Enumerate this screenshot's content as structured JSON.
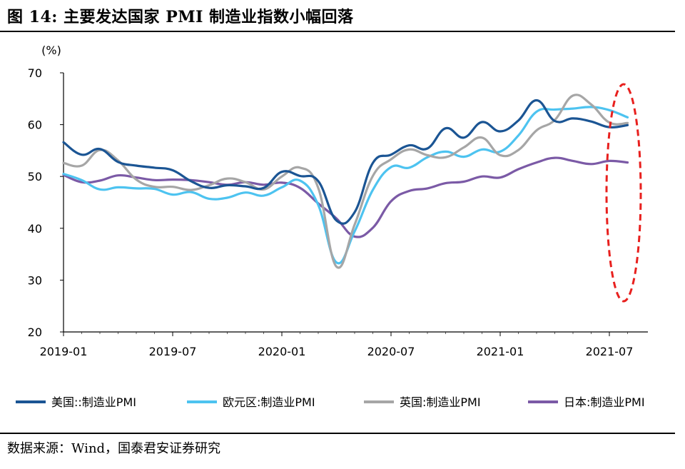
{
  "header": {
    "title": "图 14:  主要发达国家 PMI 制造业指数小幅回落"
  },
  "footer": {
    "source": "数据来源：Wind，国泰君安证券研究"
  },
  "chart_data": {
    "type": "line",
    "title": "图 14:  主要发达国家 PMI 制造业指数小幅回落",
    "ylabel": "(%)",
    "ylim": [
      20,
      70
    ],
    "yticks": [
      "20",
      "30",
      "40",
      "50",
      "60",
      "70"
    ],
    "xticks": [
      "2019-01",
      "2019-07",
      "2020-01",
      "2020-07",
      "2021-01",
      "2021-07"
    ],
    "x": [
      "2019-01",
      "2019-02",
      "2019-03",
      "2019-04",
      "2019-05",
      "2019-06",
      "2019-07",
      "2019-08",
      "2019-09",
      "2019-10",
      "2019-11",
      "2019-12",
      "2020-01",
      "2020-02",
      "2020-03",
      "2020-04",
      "2020-05",
      "2020-06",
      "2020-07",
      "2020-08",
      "2020-09",
      "2020-10",
      "2020-11",
      "2020-12",
      "2021-01",
      "2021-02",
      "2021-03",
      "2021-04",
      "2021-05",
      "2021-06",
      "2021-07",
      "2021-08"
    ],
    "grid": false,
    "legend_position": "bottom",
    "series": [
      {
        "name": "美国::制造业PMI",
        "color": "#1B5594",
        "values": [
          56.6,
          54.2,
          55.3,
          52.8,
          52.1,
          51.7,
          51.2,
          49.1,
          47.8,
          48.3,
          48.1,
          47.8,
          50.9,
          50.1,
          49.1,
          41.5,
          43.1,
          52.6,
          54.2,
          56.0,
          55.4,
          59.3,
          57.5,
          60.5,
          58.7,
          60.8,
          64.7,
          60.7,
          61.2,
          60.6,
          59.5,
          59.9
        ]
      },
      {
        "name": "欧元区:制造业PMI",
        "color": "#4DC3F0",
        "values": [
          50.5,
          49.3,
          47.5,
          47.9,
          47.7,
          47.6,
          46.5,
          47.0,
          45.7,
          45.9,
          46.9,
          46.3,
          47.9,
          49.2,
          44.5,
          33.4,
          39.4,
          47.4,
          51.8,
          51.7,
          53.7,
          54.8,
          53.8,
          55.2,
          54.8,
          57.9,
          62.5,
          62.9,
          63.1,
          63.4,
          62.8,
          61.4
        ]
      },
      {
        "name": "英国:制造业PMI",
        "color": "#A6A6A6",
        "values": [
          52.6,
          52.1,
          55.1,
          53.1,
          49.4,
          48.0,
          48.0,
          47.4,
          48.3,
          49.6,
          48.9,
          47.5,
          50.0,
          51.7,
          47.8,
          32.6,
          40.7,
          50.1,
          53.3,
          55.2,
          54.1,
          53.7,
          55.6,
          57.5,
          54.1,
          55.1,
          58.9,
          60.9,
          65.6,
          63.9,
          60.4,
          60.3
        ]
      },
      {
        "name": "日本:制造业PMI",
        "color": "#7B5AA6",
        "values": [
          50.3,
          48.9,
          49.2,
          50.2,
          49.8,
          49.3,
          49.4,
          49.3,
          48.9,
          48.4,
          48.9,
          48.4,
          48.8,
          47.8,
          44.8,
          41.9,
          38.4,
          40.1,
          45.2,
          47.2,
          47.7,
          48.7,
          49.0,
          50.0,
          49.8,
          51.4,
          52.7,
          53.6,
          53.0,
          52.4,
          53.0,
          52.7
        ]
      }
    ]
  }
}
